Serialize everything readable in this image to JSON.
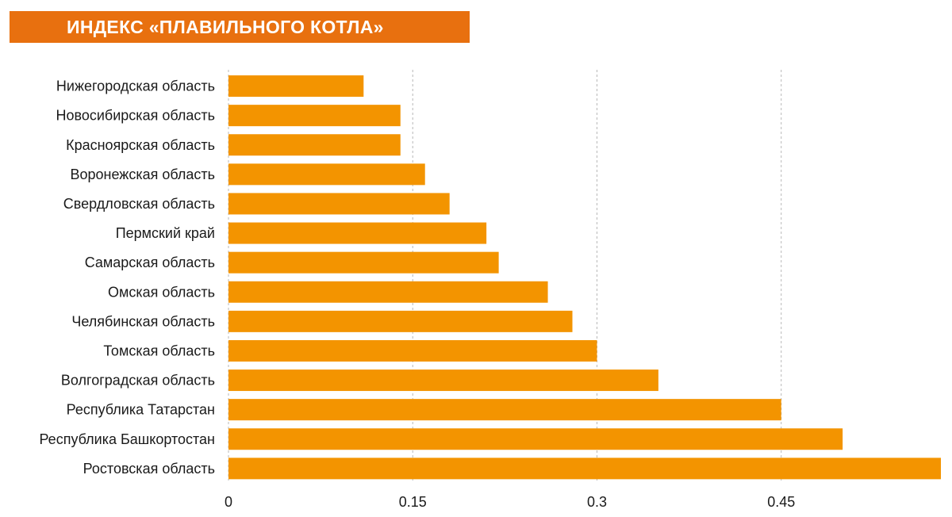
{
  "chart_data": {
    "type": "bar",
    "orientation": "horizontal",
    "title": "ИНДЕКС «ПЛАВИЛЬНОГО КОТЛА»",
    "categories": [
      "Нижегородская область",
      "Новосибирская область",
      "Красноярская область",
      "Воронежская область",
      "Свердловская область",
      "Пермский край",
      "Самарская область",
      "Омская область",
      "Челябинская область",
      "Томская область",
      "Волгоградская область",
      "Республика Татарстан",
      "Республика Башкортостан",
      "Ростовская область"
    ],
    "values": [
      0.11,
      0.14,
      0.14,
      0.16,
      0.18,
      0.21,
      0.22,
      0.26,
      0.28,
      0.3,
      0.35,
      0.45,
      0.5,
      0.58
    ],
    "xlim": [
      0,
      0.58
    ],
    "xticks": [
      0,
      0.15,
      0.3,
      0.45
    ],
    "xtick_labels": [
      "0",
      "0.15",
      "0.3",
      "0.45"
    ],
    "grid": "vertical dashed",
    "bar_color": "#f39400",
    "title_color": "#e8700f"
  }
}
